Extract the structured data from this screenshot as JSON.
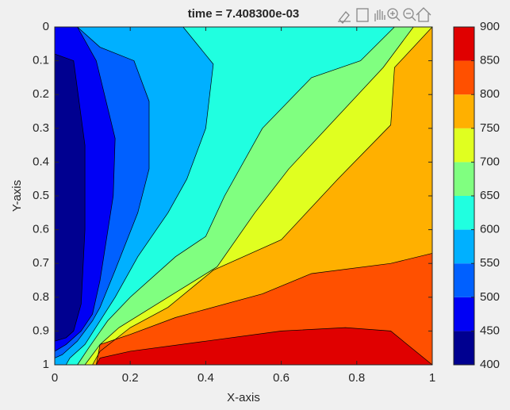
{
  "chart_data": {
    "type": "contour",
    "title": "time = 7.408300e-03",
    "xlabel": "X-axis",
    "ylabel": "Y-axis",
    "xlim": [
      0,
      1
    ],
    "ylim": [
      0,
      1
    ],
    "y_reversed": true,
    "xticks": [
      0,
      0.2,
      0.4,
      0.6,
      0.8,
      1
    ],
    "yticks": [
      0,
      0.1,
      0.2,
      0.3,
      0.4,
      0.5,
      0.6,
      0.7,
      0.8,
      0.9,
      1
    ],
    "clim": [
      400,
      900
    ],
    "cticks": [
      400,
      450,
      500,
      550,
      600,
      650,
      700,
      750,
      800,
      850,
      900
    ],
    "colors": [
      "#000090",
      "#0000f5",
      "#0060ff",
      "#00b0ff",
      "#20ffe0",
      "#80ff80",
      "#e0ff20",
      "#ffb000",
      "#ff5000",
      "#e00000"
    ],
    "contours": [
      {
        "level": 450,
        "x": [
          0,
          0.05,
          0.08,
          0.08,
          0.07,
          0.05,
          0.03,
          0
        ],
        "y": [
          0.08,
          0.1,
          0.35,
          0.6,
          0.82,
          0.9,
          0.92,
          0.93
        ]
      },
      {
        "level": 500,
        "x": [
          0.06,
          0.11,
          0.16,
          0.155,
          0.12,
          0.1,
          0.07,
          0.03,
          0
        ],
        "y": [
          0,
          0.1,
          0.33,
          0.5,
          0.75,
          0.85,
          0.9,
          0.94,
          0.96
        ]
      },
      {
        "level": 550,
        "x": [
          0.06,
          0.12,
          0.21,
          0.25,
          0.25,
          0.22,
          0.16,
          0.12,
          0.1,
          0.06,
          0.02,
          0
        ],
        "y": [
          0,
          0.06,
          0.1,
          0.22,
          0.42,
          0.55,
          0.72,
          0.83,
          0.87,
          0.93,
          0.97,
          0.98
        ]
      },
      {
        "level": 600,
        "x": [
          0.34,
          0.42,
          0.4,
          0.35,
          0.3,
          0.22,
          0.16,
          0.12,
          0.08,
          0.04,
          0.03
        ],
        "y": [
          0,
          0.11,
          0.3,
          0.45,
          0.55,
          0.68,
          0.8,
          0.87,
          0.94,
          0.98,
          1
        ]
      },
      {
        "level": 650,
        "x": [
          0.9,
          0.81,
          0.68,
          0.55,
          0.45,
          0.4,
          0.32,
          0.2,
          0.14,
          0.09,
          0.06
        ],
        "y": [
          0,
          0.1,
          0.15,
          0.3,
          0.5,
          0.62,
          0.68,
          0.8,
          0.87,
          0.95,
          1
        ]
      },
      {
        "level": 700,
        "x": [
          0.95,
          0.87,
          0.72,
          0.62,
          0.53,
          0.43,
          0.3,
          0.17,
          0.12,
          0.08
        ],
        "y": [
          0,
          0.12,
          0.3,
          0.42,
          0.55,
          0.71,
          0.8,
          0.89,
          0.94,
          1
        ]
      },
      {
        "level": 750,
        "x": [
          1,
          0.9,
          0.89,
          0.75,
          0.6,
          0.42,
          0.3,
          0.2,
          0.12,
          0.1
        ],
        "y": [
          0,
          0.12,
          0.29,
          0.45,
          0.63,
          0.72,
          0.83,
          0.89,
          0.96,
          1
        ]
      },
      {
        "level": 800,
        "x": [
          1,
          0.89,
          0.68,
          0.55,
          0.32,
          0.2,
          0.12,
          0.11
        ],
        "y": [
          0.67,
          0.7,
          0.73,
          0.79,
          0.86,
          0.91,
          0.94,
          1
        ]
      },
      {
        "level": 850,
        "x": [
          1,
          0.89,
          0.77,
          0.6,
          0.4,
          0.2,
          0.12,
          0.11
        ],
        "y": [
          1,
          0.9,
          0.89,
          0.9,
          0.93,
          0.96,
          0.98,
          1
        ]
      }
    ]
  }
}
